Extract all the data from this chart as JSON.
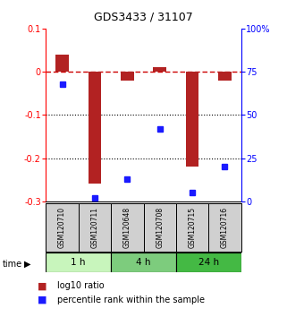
{
  "title": "GDS3433 / 31107",
  "samples": [
    "GSM120710",
    "GSM120711",
    "GSM120648",
    "GSM120708",
    "GSM120715",
    "GSM120716"
  ],
  "log10_ratio": [
    0.04,
    -0.26,
    -0.02,
    0.01,
    -0.22,
    -0.02
  ],
  "percentile_rank": [
    0.68,
    0.02,
    0.13,
    0.42,
    0.05,
    0.2
  ],
  "ylim_left": [
    -0.3,
    0.1
  ],
  "ylim_right": [
    0,
    100
  ],
  "y_ticks_left": [
    0.1,
    0.0,
    -0.1,
    -0.2,
    -0.3
  ],
  "y_ticks_right": [
    100,
    75,
    50,
    25,
    0
  ],
  "y_tick_labels_left": [
    "0.1",
    "0",
    "-0.1",
    "-0.2",
    "-0.3"
  ],
  "y_tick_labels_right": [
    "100%",
    "75",
    "50",
    "25",
    "0"
  ],
  "groups": [
    {
      "label": "1 h",
      "color": "#c8f5bc",
      "start": 0,
      "end": 2
    },
    {
      "label": "4 h",
      "color": "#7dcc7d",
      "start": 2,
      "end": 4
    },
    {
      "label": "24 h",
      "color": "#44b944",
      "start": 4,
      "end": 6
    }
  ],
  "bar_color": "#b22222",
  "dot_color": "#1a1aff",
  "bar_width": 0.4,
  "hline_color": "#cc0000",
  "grid_color": "#000000",
  "label_log10": "log10 ratio",
  "label_pct": "percentile rank within the sample",
  "sample_bg": "#d0d0d0"
}
